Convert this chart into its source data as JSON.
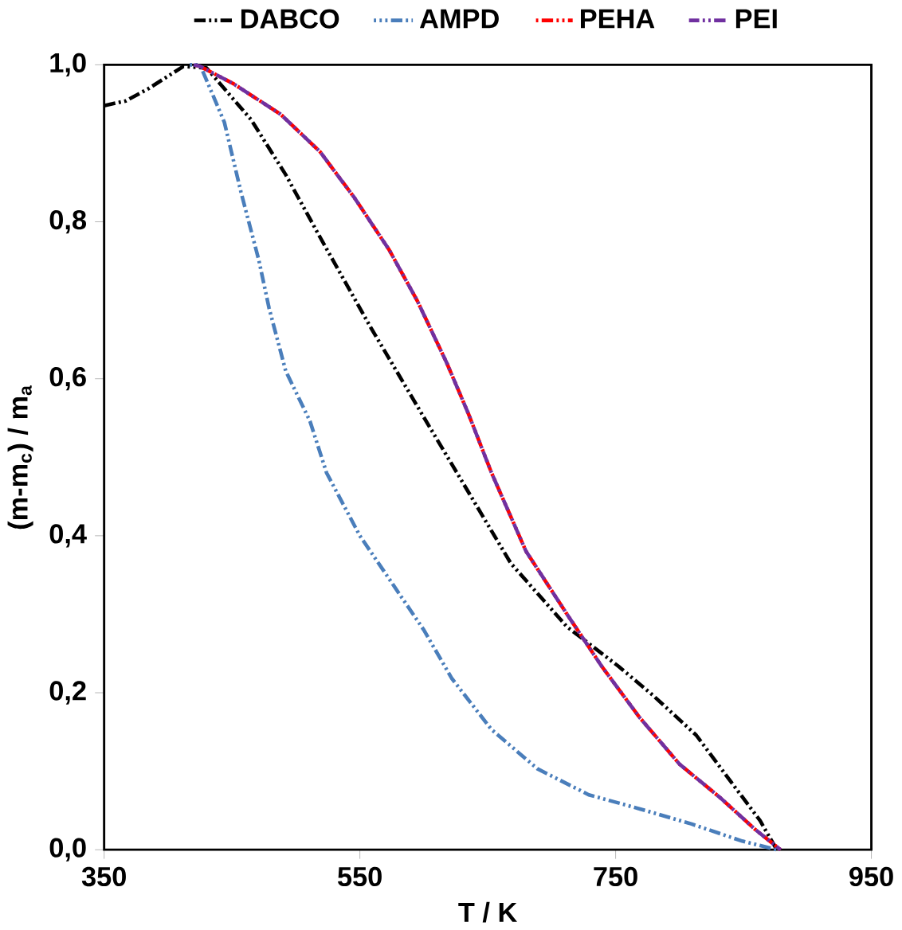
{
  "chart_data": {
    "type": "line",
    "xlabel": "T / K",
    "ylabel": "(m-m$_{c}$) / m$_{a}$",
    "xlim": [
      350,
      950
    ],
    "ylim": [
      0,
      1
    ],
    "xticks": [
      350,
      550,
      750,
      950
    ],
    "yticks": [
      {
        "value": 0,
        "label": "0,0"
      },
      {
        "value": 0.2,
        "label": "0,2"
      },
      {
        "value": 0.4,
        "label": "0,4"
      },
      {
        "value": 0.6,
        "label": "0,6"
      },
      {
        "value": 0.8,
        "label": "0,8"
      },
      {
        "value": 1,
        "label": "1,0"
      }
    ],
    "legend": "top",
    "grid": false,
    "line_style": "dashed",
    "marker": "none",
    "series": [
      {
        "name": "DABCO",
        "color": "#000000",
        "x": [
          350,
          367,
          385,
          412,
          430,
          465,
          492,
          519,
          559,
          604,
          626,
          668,
          712,
          752,
          779,
          813,
          840,
          863,
          876
        ],
        "values": [
          0.948,
          0.954,
          0.97,
          0.998,
          0.996,
          0.93,
          0.86,
          0.78,
          0.664,
          0.54,
          0.48,
          0.365,
          0.284,
          0.234,
          0.197,
          0.146,
          0.087,
          0.037,
          0
        ]
      },
      {
        "name": "AMPD",
        "color": "#4a7ebb",
        "x": [
          417,
          425,
          444,
          457,
          471,
          479,
          492,
          511,
          524,
          550,
          600,
          622,
          653,
          689,
          729,
          769,
          809,
          849,
          876
        ],
        "values": [
          1,
          1,
          0.927,
          0.838,
          0.751,
          0.69,
          0.61,
          0.546,
          0.48,
          0.4,
          0.28,
          0.218,
          0.153,
          0.103,
          0.07,
          0.052,
          0.033,
          0.011,
          0
        ]
      },
      {
        "name": "PEHA",
        "color": "#ff0000",
        "x": [
          420,
          425,
          451,
          488,
          519,
          546,
          573,
          595,
          618,
          635,
          653,
          680,
          712,
          739,
          769,
          800,
          832,
          859,
          879
        ],
        "values": [
          1,
          0.998,
          0.976,
          0.937,
          0.889,
          0.83,
          0.764,
          0.699,
          0.62,
          0.555,
          0.48,
          0.38,
          0.3,
          0.234,
          0.168,
          0.109,
          0.066,
          0.026,
          0
        ]
      },
      {
        "name": "PEI",
        "color": "#7030a0",
        "x": [
          420,
          425,
          451,
          488,
          519,
          546,
          573,
          595,
          618,
          635,
          653,
          680,
          712,
          739,
          769,
          800,
          832,
          859,
          879
        ],
        "values": [
          1,
          0.998,
          0.976,
          0.937,
          0.889,
          0.83,
          0.764,
          0.699,
          0.62,
          0.555,
          0.48,
          0.38,
          0.3,
          0.234,
          0.168,
          0.109,
          0.066,
          0.026,
          0
        ]
      }
    ]
  }
}
